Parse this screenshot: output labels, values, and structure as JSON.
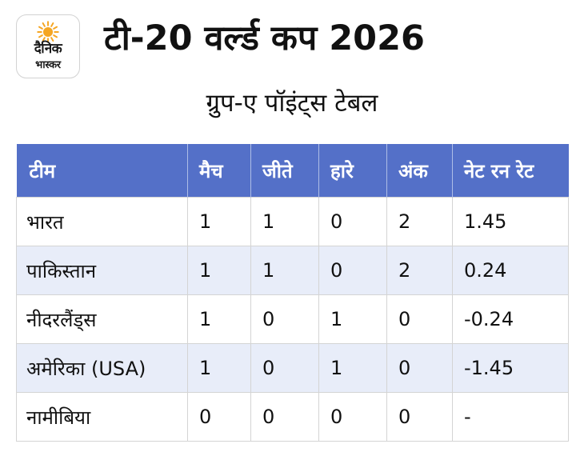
{
  "brand": {
    "logo_line_1": "दैनिक",
    "logo_line_2": "भास्कर",
    "sun_color": "#f5a623"
  },
  "header": {
    "title": "टी-20 वर्ल्ड कप 2026",
    "subtitle": "ग्रुप-ए पॉइंट्स टेबल"
  },
  "table": {
    "header_color": "#5470c8",
    "stripe_color": "#e8edf9",
    "columns": [
      "टीम",
      "मैच",
      "जीते",
      "हारे",
      "अंक",
      "नेट रन रेट"
    ],
    "rows": [
      [
        "भारत",
        "1",
        "1",
        "0",
        "2",
        "1.45"
      ],
      [
        "पाकिस्तान",
        "1",
        "1",
        "0",
        "2",
        "0.24"
      ],
      [
        "नीदरलैंड्स",
        "1",
        "0",
        "1",
        "0",
        "-0.24"
      ],
      [
        "अमेरिका (USA)",
        "1",
        "0",
        "1",
        "0",
        "-1.45"
      ],
      [
        "नामीबिया",
        "0",
        "0",
        "0",
        "0",
        "-"
      ]
    ]
  }
}
